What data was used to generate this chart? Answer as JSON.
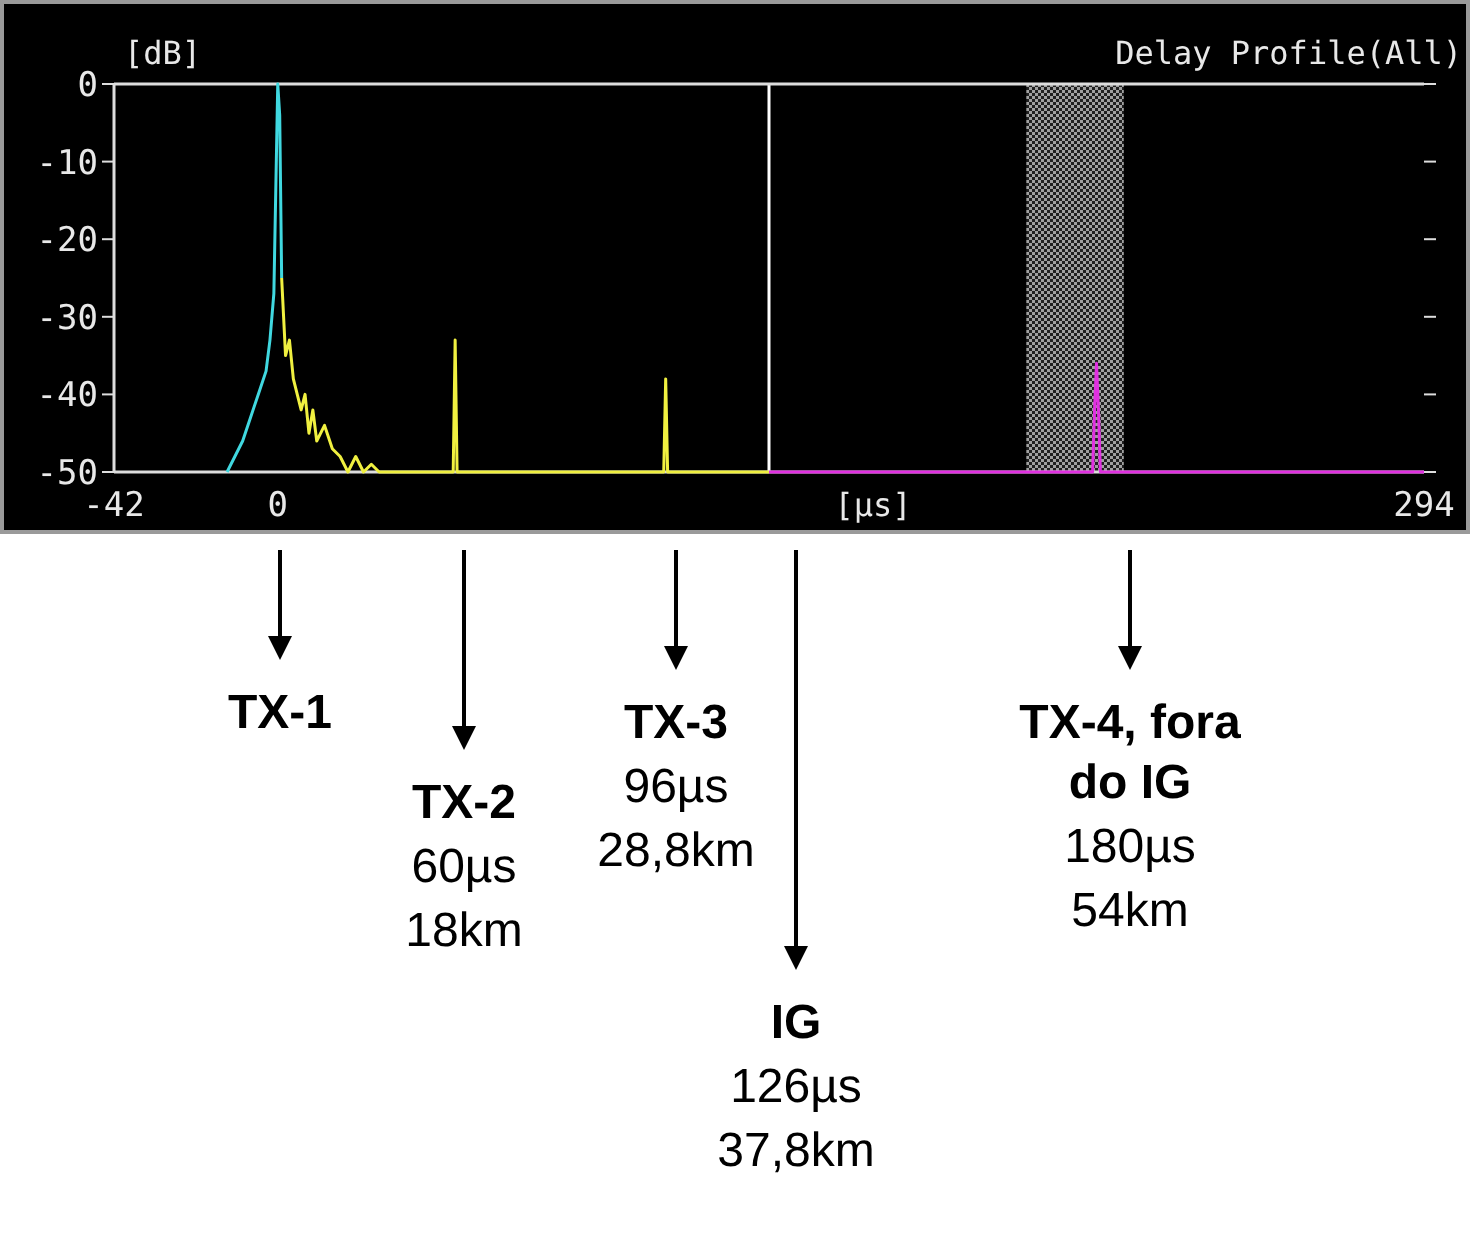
{
  "chart_data": {
    "type": "line",
    "title": "Delay Profile(All)",
    "ylabel": "[dB]",
    "xlabel": "[µs]",
    "xlim": [
      -42,
      294
    ],
    "xticks": [
      -42,
      0,
      294
    ],
    "ylim": [
      -50,
      0
    ],
    "yticks": [
      0,
      -10,
      -20,
      -30,
      -40,
      -50
    ],
    "grid": false,
    "marker": "none",
    "series": [
      {
        "color": "#40d8e0",
        "x": [
          -13,
          -11,
          -9,
          -7,
          -5,
          -3,
          -2,
          -1,
          0,
          0.5,
          1
        ],
        "values": [
          -50,
          -48,
          -46,
          -43,
          -40,
          -37,
          -33,
          -27,
          0,
          -4,
          -25
        ]
      },
      {
        "color": "#f0f040",
        "x": [
          1,
          2,
          3,
          4,
          5,
          6,
          7,
          8,
          9,
          10,
          12,
          14,
          16,
          18,
          20,
          22,
          24,
          26,
          45,
          45.5,
          46,
          99,
          99.5,
          100,
          126
        ],
        "values": [
          -25,
          -35,
          -33,
          -38,
          -40,
          -42,
          -40,
          -45,
          -42,
          -46,
          -44,
          -47,
          -48,
          -50,
          -48,
          -50,
          -49,
          -50,
          -50,
          -33,
          -50,
          -50,
          -38,
          -50,
          -50
        ]
      },
      {
        "color": "#e030e0",
        "x": [
          126,
          209,
          209.5,
          210,
          210.5,
          211,
          294
        ],
        "values": [
          -50,
          -50,
          -42,
          -36,
          -42,
          -50,
          -50
        ]
      }
    ],
    "ref_lines": [
      {
        "axis": "x",
        "value": 126,
        "color": "#ffffff"
      }
    ],
    "bands": [
      {
        "axis": "x",
        "from": 192,
        "to": 217,
        "color": "#a0a0a0"
      }
    ],
    "annotations": [
      "TX-1",
      "TX-2\n60µs\n18km",
      "TX-3\n96µs\n28,8km",
      "IG\n126µs\n37,8km",
      "TX-4, fora do IG\n180µs\n54km"
    ]
  }
}
